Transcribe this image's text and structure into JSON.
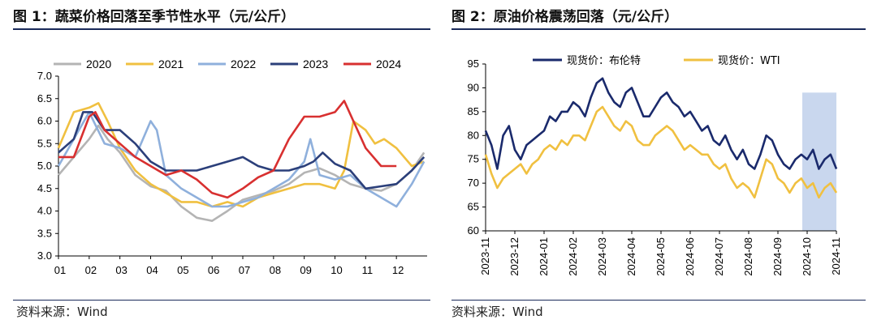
{
  "figures": {
    "left": {
      "title": "图 1：蔬菜价格回落至季节性水平（元/公斤）",
      "source": "资料来源：Wind"
    },
    "right": {
      "title": "图 2：原油价格震荡回落（元/公斤）",
      "source": "资料来源：Wind"
    }
  },
  "chart_data": [
    {
      "type": "line",
      "ylim": [
        3.0,
        7.0
      ],
      "yticks": [
        "3.0",
        "3.5",
        "4.0",
        "4.5",
        "5.0",
        "5.5",
        "6.0",
        "6.5",
        "7.0"
      ],
      "categories": [
        "01",
        "02",
        "03",
        "04",
        "05",
        "06",
        "07",
        "08",
        "09",
        "10",
        "11",
        "12"
      ],
      "x_range": [
        1,
        13
      ],
      "series": [
        {
          "name": "2020",
          "color": "#b4b4b4",
          "x": [
            1,
            1.5,
            2,
            2.3,
            2.6,
            3,
            3.5,
            4,
            4.5,
            5,
            5.5,
            6,
            6.5,
            7,
            7.5,
            8,
            8.5,
            9,
            9.5,
            10,
            10.5,
            11,
            11.5,
            12,
            12.5,
            12.9
          ],
          "values": [
            4.8,
            5.2,
            5.6,
            5.9,
            5.6,
            5.3,
            4.8,
            4.55,
            4.45,
            4.1,
            3.85,
            3.78,
            4.0,
            4.25,
            4.35,
            4.45,
            4.6,
            4.85,
            4.95,
            4.8,
            4.6,
            4.5,
            4.45,
            4.6,
            4.9,
            5.3
          ]
        },
        {
          "name": "2021",
          "color": "#f0c040",
          "x": [
            1,
            1.5,
            2,
            2.3,
            2.6,
            3,
            3.5,
            4,
            4.5,
            5,
            5.5,
            6,
            6.5,
            7,
            7.5,
            8,
            8.5,
            9,
            9.5,
            10,
            10.3,
            10.6,
            11,
            11.3,
            11.6,
            12,
            12.5,
            12.9
          ],
          "values": [
            5.4,
            6.2,
            6.3,
            6.4,
            6.0,
            5.4,
            4.9,
            4.6,
            4.4,
            4.2,
            4.2,
            4.1,
            4.2,
            4.1,
            4.3,
            4.4,
            4.5,
            4.6,
            4.6,
            4.5,
            4.9,
            6.0,
            5.8,
            5.5,
            5.6,
            5.4,
            5.0,
            5.1
          ]
        },
        {
          "name": "2022",
          "color": "#8fb0dc",
          "x": [
            1,
            1.5,
            2,
            2.5,
            3,
            3.5,
            4,
            4.2,
            4.5,
            5,
            5.5,
            6,
            6.5,
            7,
            7.5,
            8,
            8.5,
            9,
            9.2,
            9.5,
            10,
            10.5,
            11,
            11.5,
            12,
            12.5,
            12.9
          ],
          "values": [
            5.0,
            5.6,
            6.2,
            5.5,
            5.4,
            5.2,
            6.0,
            5.8,
            4.8,
            4.5,
            4.3,
            4.1,
            4.1,
            4.2,
            4.3,
            4.5,
            4.7,
            5.1,
            5.6,
            4.8,
            4.7,
            4.8,
            4.5,
            4.3,
            4.1,
            4.6,
            5.1
          ]
        },
        {
          "name": "2023",
          "color": "#2b3f7a",
          "x": [
            1,
            1.5,
            1.8,
            2.1,
            2.5,
            3,
            3.5,
            4,
            4.5,
            5,
            5.5,
            6,
            6.5,
            7,
            7.5,
            8,
            8.5,
            9,
            9.3,
            9.6,
            10,
            10.5,
            11,
            11.5,
            12,
            12.5,
            12.9
          ],
          "values": [
            5.3,
            5.6,
            6.2,
            6.2,
            5.8,
            5.8,
            5.5,
            5.1,
            4.9,
            4.9,
            4.9,
            5.0,
            5.1,
            5.2,
            5.0,
            4.9,
            4.9,
            5.0,
            5.1,
            5.3,
            5.05,
            4.9,
            4.5,
            4.55,
            4.6,
            4.9,
            5.2
          ]
        },
        {
          "name": "2024",
          "color": "#d83030",
          "x": [
            1,
            1.5,
            2,
            2.2,
            2.5,
            3,
            3.5,
            4,
            4.5,
            5,
            5.5,
            6,
            6.5,
            7,
            7.5,
            8,
            8.5,
            9,
            9.5,
            10,
            10.3,
            10.6,
            11,
            11.5,
            12
          ],
          "values": [
            5.2,
            5.2,
            6.1,
            6.2,
            5.8,
            5.5,
            5.2,
            5.0,
            4.8,
            4.9,
            4.7,
            4.4,
            4.3,
            4.5,
            4.75,
            4.9,
            5.6,
            6.1,
            6.1,
            6.2,
            6.45,
            6.0,
            5.4,
            5.0,
            5.0
          ]
        }
      ]
    },
    {
      "type": "line",
      "ylim": [
        60,
        95
      ],
      "yticks": [
        "60",
        "65",
        "70",
        "75",
        "80",
        "85",
        "90",
        "95"
      ],
      "categories": [
        "2023-11",
        "2023-12",
        "2024-01",
        "2024-02",
        "2024-03",
        "2024-04",
        "2024-05",
        "2024-06",
        "2024-07",
        "2024-08",
        "2024-09",
        "2024-10",
        "2024-11"
      ],
      "x_range": [
        0,
        12
      ],
      "highlight": {
        "from": 11,
        "to": 12,
        "color": "#c9d7ee"
      },
      "series": [
        {
          "name": "现货价：布伦特",
          "color": "#1a2a6c",
          "x": [
            0,
            0.2,
            0.4,
            0.6,
            0.8,
            1,
            1.2,
            1.4,
            1.6,
            1.8,
            2,
            2.2,
            2.4,
            2.6,
            2.8,
            3,
            3.2,
            3.4,
            3.6,
            3.8,
            4,
            4.2,
            4.4,
            4.6,
            4.8,
            5,
            5.2,
            5.4,
            5.6,
            5.8,
            6,
            6.2,
            6.4,
            6.6,
            6.8,
            7,
            7.2,
            7.4,
            7.6,
            7.8,
            8,
            8.2,
            8.4,
            8.6,
            8.8,
            9,
            9.2,
            9.4,
            9.6,
            9.8,
            10,
            10.2,
            10.4,
            10.6,
            10.8,
            11,
            11.2,
            11.4,
            11.6,
            11.8,
            12
          ],
          "values": [
            81,
            78,
            73,
            80,
            82,
            77,
            75,
            78,
            79,
            80,
            81,
            84,
            83,
            85,
            85,
            87,
            86,
            84,
            88,
            91,
            92,
            89,
            87,
            86,
            89,
            90,
            87,
            84,
            84,
            86,
            88,
            89,
            87,
            86,
            84,
            85,
            83,
            81,
            82,
            79,
            78,
            80,
            77,
            75,
            77,
            74,
            73,
            76,
            80,
            79,
            76,
            74,
            73,
            75,
            76,
            75,
            77,
            73,
            75,
            76,
            73
          ]
        },
        {
          "name": "现货价：WTI",
          "color": "#f0c040",
          "x": [
            0,
            0.2,
            0.4,
            0.6,
            0.8,
            1,
            1.2,
            1.4,
            1.6,
            1.8,
            2,
            2.2,
            2.4,
            2.6,
            2.8,
            3,
            3.2,
            3.4,
            3.6,
            3.8,
            4,
            4.2,
            4.4,
            4.6,
            4.8,
            5,
            5.2,
            5.4,
            5.6,
            5.8,
            6,
            6.2,
            6.4,
            6.6,
            6.8,
            7,
            7.2,
            7.4,
            7.6,
            7.8,
            8,
            8.2,
            8.4,
            8.6,
            8.8,
            9,
            9.2,
            9.4,
            9.6,
            9.8,
            10,
            10.2,
            10.4,
            10.6,
            10.8,
            11,
            11.2,
            11.4,
            11.6,
            11.8,
            12
          ],
          "values": [
            76,
            72,
            69,
            71,
            72,
            73,
            74,
            72,
            74,
            75,
            77,
            78,
            77,
            79,
            78,
            80,
            80,
            79,
            82,
            85,
            86,
            84,
            82,
            81,
            83,
            82,
            79,
            78,
            78,
            80,
            81,
            82,
            81,
            79,
            77,
            78,
            77,
            76,
            76,
            74,
            73,
            74,
            71,
            69,
            70,
            69,
            67,
            71,
            75,
            74,
            71,
            70,
            68,
            70,
            71,
            69,
            70,
            67,
            69,
            70,
            68
          ]
        }
      ]
    }
  ]
}
